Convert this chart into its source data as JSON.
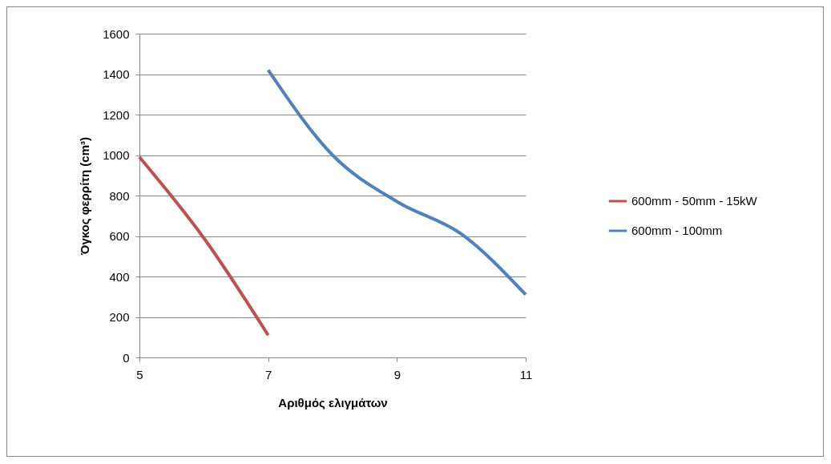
{
  "chart_data": {
    "type": "line",
    "xlabel": "Αριθμός ελιγμάτων",
    "ylabel": "Όγκος φερρίτη (cm³)",
    "series": [
      {
        "name": "600mm - 50mm - 15kW",
        "color": "#c0504d",
        "x": [
          5,
          6,
          7
        ],
        "values": [
          990,
          590,
          110
        ]
      },
      {
        "name": "600mm - 100mm",
        "color": "#4f81bd",
        "x": [
          7,
          8,
          9,
          10,
          11
        ],
        "values": [
          1420,
          1000,
          770,
          610,
          310
        ]
      }
    ],
    "xlim": [
      5,
      11
    ],
    "xticks": [
      5,
      7,
      9,
      11
    ],
    "ylim": [
      0,
      1600
    ],
    "yticks": [
      0,
      200,
      400,
      600,
      800,
      1000,
      1200,
      1400,
      1600
    ],
    "grid": "y",
    "legend": "right",
    "marker": "none",
    "line_style": "solid"
  }
}
